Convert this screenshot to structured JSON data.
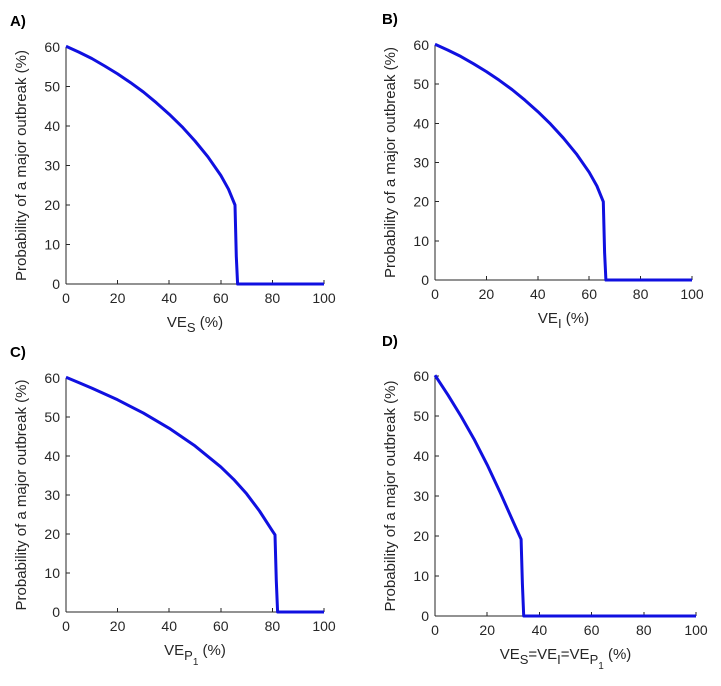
{
  "colors": {
    "series": "#1010e0",
    "axis": "#262626"
  },
  "chart_data": [
    {
      "panel": "A)",
      "type": "line",
      "xlabel": {
        "base": "VE",
        "parts": [
          {
            "text": "S",
            "level": 1
          }
        ],
        "unit": " (%)"
      },
      "ylabel": "Probability of a major outbreak (%)",
      "xlim": [
        0,
        100
      ],
      "ylim": [
        0,
        60
      ],
      "xticks": [
        0,
        20,
        40,
        60,
        80,
        100
      ],
      "yticks": [
        0,
        10,
        20,
        30,
        40,
        50,
        60
      ],
      "series": [
        {
          "name": "outbreak probability",
          "x": [
            0,
            5,
            10,
            15,
            20,
            25,
            30,
            35,
            40,
            45,
            50,
            55,
            60,
            63,
            65.5,
            66,
            66.5,
            70,
            80,
            90,
            100
          ],
          "y": [
            60.2,
            58.7,
            57.1,
            55.2,
            53.2,
            51.0,
            48.6,
            45.9,
            43.0,
            39.8,
            36.2,
            32.2,
            27.5,
            24.0,
            20.0,
            7.0,
            0,
            0,
            0,
            0,
            0
          ]
        }
      ]
    },
    {
      "panel": "B)",
      "type": "line",
      "xlabel": {
        "base": "VE",
        "parts": [
          {
            "text": "I",
            "level": 1
          }
        ],
        "unit": " (%)"
      },
      "ylabel": "Probability of a major outbreak (%)",
      "xlim": [
        0,
        100
      ],
      "ylim": [
        0,
        60
      ],
      "xticks": [
        0,
        20,
        40,
        60,
        80,
        100
      ],
      "yticks": [
        0,
        10,
        20,
        30,
        40,
        50,
        60
      ],
      "series": [
        {
          "name": "outbreak probability",
          "x": [
            0,
            5,
            10,
            15,
            20,
            25,
            30,
            35,
            40,
            45,
            50,
            55,
            60,
            63,
            65.5,
            66,
            66.5,
            70,
            80,
            90,
            100
          ],
          "y": [
            60.2,
            58.7,
            57.1,
            55.2,
            53.2,
            51.0,
            48.6,
            45.9,
            43.0,
            39.8,
            36.2,
            32.2,
            27.5,
            24.0,
            20.0,
            7.0,
            0,
            0,
            0,
            0,
            0
          ]
        }
      ]
    },
    {
      "panel": "C)",
      "type": "line",
      "xlabel": {
        "base": "VE",
        "parts": [
          {
            "text": "P",
            "level": 1
          },
          {
            "text": "1",
            "level": 2
          }
        ],
        "unit": " (%)"
      },
      "ylabel": "Probability of a major outbreak (%)",
      "xlim": [
        0,
        100
      ],
      "ylim": [
        0,
        60
      ],
      "xticks": [
        0,
        20,
        40,
        60,
        80,
        100
      ],
      "yticks": [
        0,
        10,
        20,
        30,
        40,
        50,
        60
      ],
      "series": [
        {
          "name": "outbreak probability",
          "x": [
            0,
            10,
            20,
            30,
            40,
            50,
            60,
            65,
            70,
            75,
            80,
            81,
            81.5,
            82,
            85,
            90,
            100
          ],
          "y": [
            60.2,
            57.4,
            54.4,
            51.0,
            47.1,
            42.6,
            37.2,
            34.0,
            30.3,
            25.9,
            20.8,
            19.8,
            8.0,
            0,
            0,
            0,
            0
          ]
        }
      ]
    },
    {
      "panel": "D)",
      "type": "line",
      "xlabel": {
        "base": "VE",
        "parts": [
          {
            "text": "S",
            "level": 1
          },
          {
            "text": "=VE",
            "level": 0
          },
          {
            "text": "I",
            "level": 1
          },
          {
            "text": "=VE",
            "level": 0
          },
          {
            "text": "P",
            "level": 1
          },
          {
            "text": "1",
            "level": 2
          }
        ],
        "unit": " (%)"
      },
      "ylabel": "Probability of a major outbreak (%)",
      "xlim": [
        0,
        100
      ],
      "ylim": [
        0,
        60
      ],
      "xticks": [
        0,
        20,
        40,
        60,
        80,
        100
      ],
      "yticks": [
        0,
        10,
        20,
        30,
        40,
        50,
        60
      ],
      "series": [
        {
          "name": "outbreak probability",
          "x": [
            0,
            5,
            10,
            15,
            20,
            25,
            30,
            33,
            33.5,
            34,
            40,
            60,
            80,
            100
          ],
          "y": [
            60.2,
            55.2,
            49.9,
            44.2,
            37.8,
            30.8,
            23.5,
            19.2,
            8.0,
            0,
            0,
            0,
            0,
            0
          ]
        }
      ]
    }
  ]
}
